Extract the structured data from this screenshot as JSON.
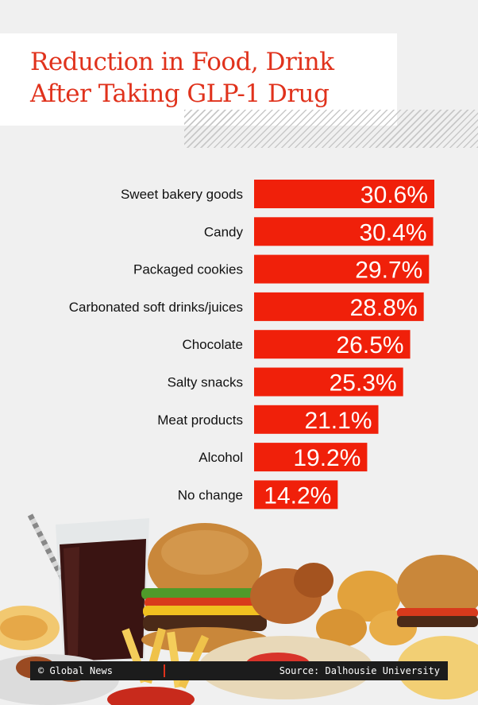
{
  "title_line1": "Reduction in Food, Drink",
  "title_line2": "After Taking GLP-1 Drug",
  "footer": {
    "credit": "© Global News",
    "source": "Source: Dalhousie University"
  },
  "colors": {
    "bar": "#f0200a",
    "title": "#e0321c",
    "background": "#f0f0f0"
  },
  "chart_data": {
    "type": "bar",
    "orientation": "horizontal",
    "categories": [
      "Sweet bakery goods",
      "Candy",
      "Packaged cookies",
      "Carbonated soft drinks/juices",
      "Chocolate",
      "Salty snacks",
      "Meat products",
      "Alcohol",
      "No change"
    ],
    "values": [
      30.6,
      30.4,
      29.7,
      28.8,
      26.5,
      25.3,
      21.1,
      19.2,
      14.2
    ],
    "value_labels": [
      "30.6%",
      "30.4%",
      "29.7%",
      "28.8%",
      "26.5%",
      "25.3%",
      "21.1%",
      "19.2%",
      "14.2%"
    ],
    "grid": false,
    "legend": "none"
  }
}
